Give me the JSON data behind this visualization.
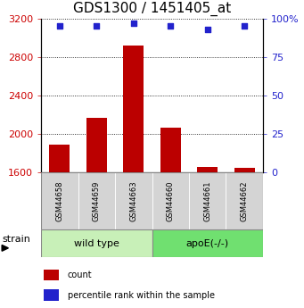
{
  "title": "GDS1300 / 1451405_at",
  "samples": [
    "GSM44658",
    "GSM44659",
    "GSM44663",
    "GSM44660",
    "GSM44661",
    "GSM44662"
  ],
  "counts": [
    1890,
    2170,
    2920,
    2065,
    1660,
    1645
  ],
  "percentile_ranks": [
    95,
    95,
    97,
    95,
    93,
    95
  ],
  "groups": [
    {
      "label": "wild type",
      "indices": [
        0,
        1,
        2
      ],
      "color": "#c8f0b8"
    },
    {
      "label": "apoE(-/-)",
      "indices": [
        3,
        4,
        5
      ],
      "color": "#70e070"
    }
  ],
  "ylim_left": [
    1600,
    3200
  ],
  "ylim_right": [
    0,
    100
  ],
  "yticks_left": [
    1600,
    2000,
    2400,
    2800,
    3200
  ],
  "yticks_right": [
    0,
    25,
    50,
    75,
    100
  ],
  "bar_color": "#bb0000",
  "dot_color": "#2222cc",
  "bar_baseline": 1600,
  "bar_width": 0.55,
  "tick_label_color_left": "#cc0000",
  "tick_label_color_right": "#2222cc",
  "sample_box_color": "#d4d4d4",
  "legend_items": [
    {
      "label": "count",
      "color": "#bb0000"
    },
    {
      "label": "percentile rank within the sample",
      "color": "#2222cc"
    }
  ],
  "strain_label": "strain",
  "title_fontsize": 11,
  "axis_fontsize": 8,
  "sample_fontsize": 6,
  "group_fontsize": 8,
  "legend_fontsize": 7,
  "strain_fontsize": 8
}
